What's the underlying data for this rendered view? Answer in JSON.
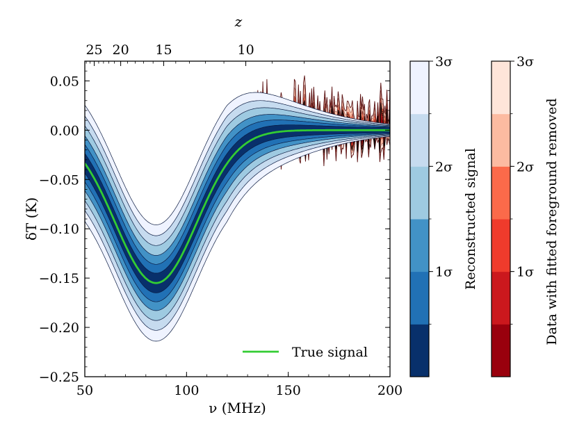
{
  "chart_data": {
    "type": "area",
    "xlabel": "ν (MHz)",
    "ylabel": "δT (K)",
    "top_axis_label": "z",
    "xlim": [
      50,
      200
    ],
    "ylim": [
      -0.25,
      0.07
    ],
    "x_ticks": [
      {
        "value": 50,
        "label": "50"
      },
      {
        "value": 100,
        "label": "100"
      },
      {
        "value": 150,
        "label": "150"
      },
      {
        "value": 200,
        "label": "200"
      }
    ],
    "y_ticks": [
      {
        "value": 0.05,
        "label": "0.05"
      },
      {
        "value": 0.0,
        "label": "0.00"
      },
      {
        "value": -0.05,
        "label": "−0.05"
      },
      {
        "value": -0.1,
        "label": "−0.10"
      },
      {
        "value": -0.15,
        "label": "−0.15"
      },
      {
        "value": -0.2,
        "label": "−0.20"
      },
      {
        "value": -0.25,
        "label": "−0.25"
      }
    ],
    "z_ticks": [
      {
        "z": 25,
        "label": "25"
      },
      {
        "z": 20,
        "label": "20"
      },
      {
        "z": 15,
        "label": "15"
      },
      {
        "z": 10,
        "label": "10"
      }
    ],
    "true_signal": {
      "name": "True signal",
      "color": "#33cc33",
      "amplitude": -0.155,
      "center_mhz": 85,
      "width_mhz": 20,
      "flattening": 0
    },
    "reconstructed_band_halfwidths": [
      0.008,
      0.017,
      0.026,
      0.036,
      0.046,
      0.057
    ],
    "colorbars": [
      {
        "label": "Reconstructed signal",
        "tick_labels": [
          "3σ",
          "2σ",
          "1σ"
        ],
        "colors": [
          "#08306b",
          "#2171b5",
          "#4292c6",
          "#9ecae1",
          "#c6dbef",
          "#eff3ff"
        ]
      },
      {
        "label": "Data with fitted foreground removed",
        "tick_labels": [
          "3σ",
          "2σ",
          "1σ"
        ],
        "colors": [
          "#99000d",
          "#cb181d",
          "#ef3b2c",
          "#fb6a4a",
          "#fcbba1",
          "#fee5d9"
        ]
      }
    ],
    "legend": {
      "entries": [
        "True signal"
      ],
      "position": "lower-right"
    }
  }
}
